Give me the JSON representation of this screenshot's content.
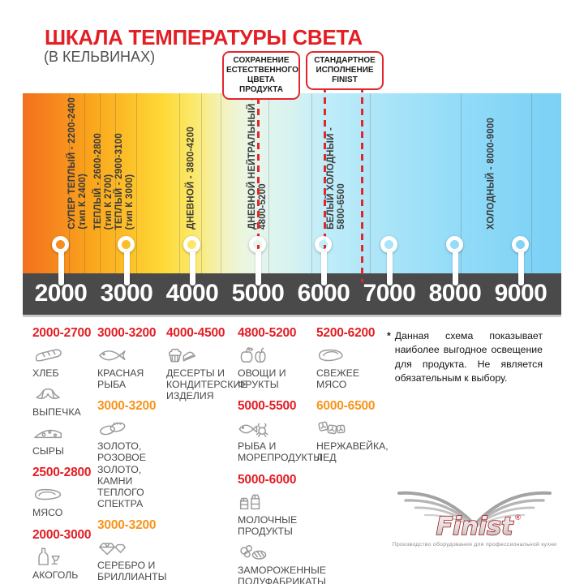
{
  "title": "ШКАЛА ТЕМПЕРАТУРЫ СВЕТА",
  "subtitle": "(В КЕЛЬВИНАХ)",
  "colors": {
    "accent_red": "#E31E24",
    "accent_orange": "#F7941D",
    "scale_bar": "#4A4A4A",
    "callout_border": "#E3262C",
    "logo_red": "#A6161B"
  },
  "callouts": [
    {
      "text": "СОХРАНЕНИЕ ЕСТЕСТВЕННОГО ЦВЕТА ПРОДУКТА"
    },
    {
      "text": "СТАНДАРТНОЕ ИСПОЛНЕНИЕ FINIST"
    }
  ],
  "gradient_labels": [
    {
      "lines": [
        "СУПЕР ТЕПЛЫЙ - 2200-2400",
        "(тип К 2400)"
      ]
    },
    {
      "lines": [
        "ТЕПЛЫЙ - 2600-2800",
        "(тип К 2700)"
      ]
    },
    {
      "lines": [
        "ТЕПЛЫЙ - 2900-3100",
        "(тип К 3000)"
      ]
    },
    {
      "lines": [
        "ДНЕВНОЙ - 3800-4200"
      ]
    },
    {
      "lines": [
        "ДНЕВНОЙ НЕЙТРАЛЬНЫЙ -",
        "4800-5200"
      ]
    },
    {
      "lines": [
        "БЕЛЫЙ ХОЛОДНЫЙ -",
        "5800-6500"
      ]
    },
    {
      "lines": [
        "ХОЛОДНЫЙ - 8000-9000"
      ]
    }
  ],
  "scale": {
    "unit": "кельвины",
    "ticks": [
      "2000",
      "3000",
      "4000",
      "5000",
      "6000",
      "7000",
      "8000",
      "9000"
    ]
  },
  "food_columns": [
    {
      "items": [
        {
          "range": "2000-2700",
          "color": "red",
          "entries": [
            {
              "icon": "bread",
              "label": "ХЛЕБ"
            },
            {
              "icon": "croissant",
              "label": "ВЫПЕЧКА"
            },
            {
              "icon": "cheese",
              "label": "СЫРЫ"
            }
          ]
        },
        {
          "range": "2500-2800",
          "color": "red",
          "entries": [
            {
              "icon": "steak",
              "label": "МЯСО"
            }
          ]
        },
        {
          "range": "2000-3000",
          "color": "red",
          "entries": [
            {
              "icon": "alcohol",
              "label": "АКОГОЛЬ"
            }
          ]
        }
      ]
    },
    {
      "items": [
        {
          "range": "3000-3200",
          "color": "red",
          "entries": [
            {
              "icon": "fish",
              "label": "КРАСНАЯ РЫБА"
            }
          ]
        },
        {
          "range": "3000-3200",
          "color": "orange",
          "entries": [
            {
              "icon": "rings",
              "label": "ЗОЛОТО, РОЗОВОЕ ЗОЛОТО, КАМНИ ТЕПЛОГО СПЕКТРА"
            }
          ]
        },
        {
          "range": "3000-3200",
          "color": "orange",
          "entries": [
            {
              "icon": "diamond",
              "label": "СЕРЕБРО И БРИЛЛИАНТЫ"
            }
          ]
        }
      ]
    },
    {
      "items": [
        {
          "range": "4000-4500",
          "color": "red",
          "entries": [
            {
              "icon": "desserts",
              "label": "ДЕСЕРТЫ И КОНДИТЕРСКИЕ ИЗДЕЛИЯ"
            }
          ]
        }
      ]
    },
    {
      "items": [
        {
          "range": "4800-5200",
          "color": "red",
          "entries": [
            {
              "icon": "vegetables",
              "label": "ОВОЩИ И ФРУКТЫ"
            }
          ]
        },
        {
          "range": "5000-5500",
          "color": "red",
          "entries": [
            {
              "icon": "seafood",
              "label": "РЫБА И МОРЕПРОДУКТЫ"
            }
          ]
        },
        {
          "range": "5000-6000",
          "color": "red",
          "entries": [
            {
              "icon": "dairy",
              "label": "МОЛОЧНЫЕ ПРОДУКТЫ"
            },
            {
              "icon": "frozen",
              "label": "ЗАМОРОЖЕННЫЕ ПОЛУФАБРИКАТЫ"
            }
          ]
        }
      ]
    },
    {
      "items": [
        {
          "range": "5200-6200",
          "color": "red",
          "entries": [
            {
              "icon": "fresh-meat",
              "label": "СВЕЖЕЕ МЯСО"
            }
          ]
        },
        {
          "range": "6000-6500",
          "color": "orange",
          "entries": [
            {
              "icon": "ice",
              "label": "НЕРЖАВЕЙКА, ЛЕД"
            }
          ]
        }
      ]
    }
  ],
  "note": {
    "asterisk": "*",
    "text": "Данная схема показывает наиболее выгодное освещение для продукта. Не является обязательным к выбору."
  },
  "logo": {
    "name": "Finist",
    "registered": "®",
    "tagline": "Производство оборудования для профессиональной кухни"
  }
}
